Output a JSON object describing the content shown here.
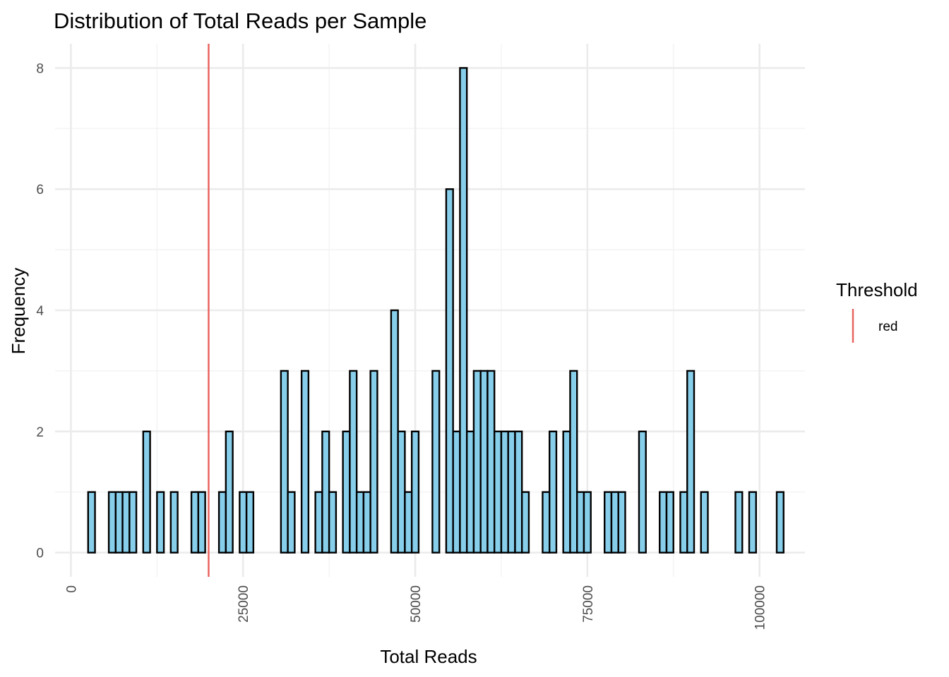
{
  "chart_data": {
    "type": "bar",
    "title": "Distribution of Total Reads per Sample",
    "xlabel": "Total Reads",
    "ylabel": "Frequency",
    "xlim": [
      -2300,
      106600
    ],
    "ylim": [
      -0.4,
      8.4
    ],
    "x_ticks": [
      0,
      25000,
      50000,
      75000,
      100000
    ],
    "x_minor_ticks": [
      12500,
      37500,
      62500,
      87500
    ],
    "y_ticks": [
      0,
      2,
      4,
      6,
      8
    ],
    "y_minor_ticks": [
      1,
      3,
      5,
      7
    ],
    "bin_width": 1000,
    "bin_start": 2500,
    "values": [
      1,
      0,
      0,
      1,
      1,
      1,
      1,
      0,
      2,
      0,
      1,
      0,
      1,
      0,
      0,
      1,
      1,
      0,
      0,
      1,
      2,
      0,
      1,
      1,
      0,
      0,
      0,
      0,
      3,
      1,
      0,
      3,
      0,
      1,
      2,
      1,
      0,
      2,
      3,
      1,
      1,
      3,
      0,
      0,
      4,
      2,
      1,
      2,
      0,
      0,
      3,
      0,
      6,
      2,
      8,
      2,
      3,
      3,
      3,
      2,
      2,
      2,
      2,
      1,
      0,
      0,
      1,
      2,
      0,
      2,
      3,
      1,
      1,
      0,
      0,
      1,
      1,
      1,
      0,
      0,
      2,
      0,
      0,
      1,
      1,
      0,
      1,
      3,
      0,
      1,
      0,
      0,
      0,
      0,
      1,
      0,
      1,
      0,
      0,
      0,
      1
    ],
    "threshold": 20000,
    "legend_position": "right",
    "grid": true,
    "colors": {
      "bar_fill": "#87CEEB",
      "bar_outline": "#000000",
      "threshold_line": "#E8605A",
      "grid_major": "#EBEBEB",
      "grid_minor": "#F2F2F2"
    },
    "legend": {
      "title": "Threshold",
      "entries": [
        "red"
      ]
    }
  }
}
